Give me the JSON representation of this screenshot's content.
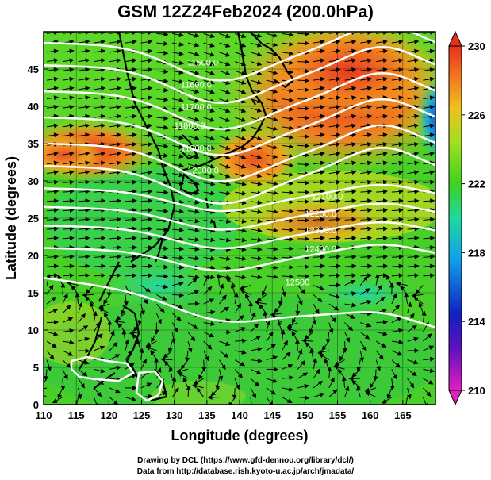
{
  "title": "GSM 12Z24Feb2024 (200.0hPa)",
  "x_axis": {
    "label": "Longitude (degrees)",
    "range": [
      110,
      170
    ],
    "ticks": [
      "110",
      "115",
      "120",
      "125",
      "130",
      "135",
      "140",
      "145",
      "150",
      "155",
      "160",
      "165"
    ]
  },
  "y_axis": {
    "label": "Latitude  (degrees)",
    "range": [
      0,
      50
    ],
    "ticks": [
      "0",
      "5",
      "10",
      "15",
      "20",
      "25",
      "30",
      "35",
      "40",
      "45"
    ]
  },
  "colorbar": {
    "range": [
      210,
      230
    ],
    "ticks": [
      "210",
      "214",
      "218",
      "222",
      "226",
      "230"
    ],
    "colors": [
      "#e020c0",
      "#1020c0",
      "#10a0e8",
      "#20d8a0",
      "#40d020",
      "#a0e020",
      "#f0c020",
      "#f07020",
      "#e83020"
    ]
  },
  "contours": [
    {
      "label": "11500.0",
      "lat_left": 48.5
    },
    {
      "label": "11600.0",
      "lat_left": 45.5
    },
    {
      "label": "11700.0",
      "lat_left": 42.0
    },
    {
      "label": "11800.0",
      "lat_left": 38.5
    },
    {
      "label": "11900.0",
      "lat_left": 35.0
    },
    {
      "label": "12000.0",
      "lat_left": 32.0
    },
    {
      "label": "12100.0",
      "lat_left": 29.0
    },
    {
      "label": "12200.0",
      "lat_left": 26.5
    },
    {
      "label": "12300.0",
      "lat_left": 24.0
    },
    {
      "label": "12400.0",
      "lat_left": 21.0
    },
    {
      "label": "12500",
      "lat_left": 17.0
    }
  ],
  "contour_labels": [
    {
      "text": "11500.0",
      "lon": 132,
      "lat": 45.5
    },
    {
      "text": "11600.0",
      "lon": 131,
      "lat": 42.5
    },
    {
      "text": "11700.0",
      "lon": 131,
      "lat": 39.5
    },
    {
      "text": "11800.0",
      "lon": 130,
      "lat": 37.0
    },
    {
      "text": "11900.0",
      "lon": 131,
      "lat": 34.0
    },
    {
      "text": "12000.0",
      "lon": 132,
      "lat": 31.0
    },
    {
      "text": "12100.0",
      "lon": 151,
      "lat": 27.5
    },
    {
      "text": "12200.0",
      "lon": 150,
      "lat": 25.2
    },
    {
      "text": "12300.0",
      "lon": 150,
      "lat": 23.0
    },
    {
      "text": "12400.0",
      "lon": 150,
      "lat": 20.5
    },
    {
      "text": "12500",
      "lon": 147,
      "lat": 16.0
    }
  ],
  "credits": {
    "line1": "Drawing by DCL (https://www.gfd-dennou.org/library/dcl/)",
    "line2": "Data from http://database.rish.kyoto-u.ac.jp/arch/jmadata/"
  }
}
